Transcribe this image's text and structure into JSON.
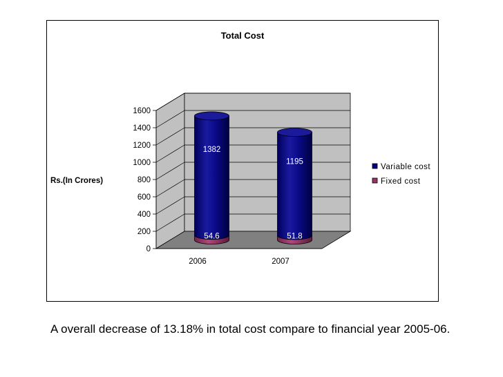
{
  "chart_data": {
    "type": "bar",
    "stacked": true,
    "three_d": true,
    "shape": "cylinder",
    "title": "Total Cost",
    "ylabel": "Rs.(In Crores)",
    "xlabel": "",
    "categories": [
      "2006",
      "2007"
    ],
    "ylim": [
      0,
      1600
    ],
    "yticks": [
      "0",
      "200",
      "400",
      "600",
      "800",
      "1000",
      "1200",
      "1400",
      "1600"
    ],
    "grid": true,
    "legend_position": "right",
    "series": [
      {
        "name": "Fixed cost",
        "values": [
          54.6,
          51.8
        ],
        "labels": [
          "54.6",
          "51.8"
        ],
        "color": "#993366"
      },
      {
        "name": "Variable cost",
        "values": [
          1382,
          1195
        ],
        "labels": [
          "1382",
          "1195"
        ],
        "color": "#000080"
      }
    ]
  },
  "caption": "A overall decrease of 13.18% in total cost compare to financial year 2005-06.",
  "colors": {
    "back_wall": "#c0c0c0",
    "side_wall": "#c0c0c0",
    "floor": "#808080",
    "gridline": "#000000"
  }
}
